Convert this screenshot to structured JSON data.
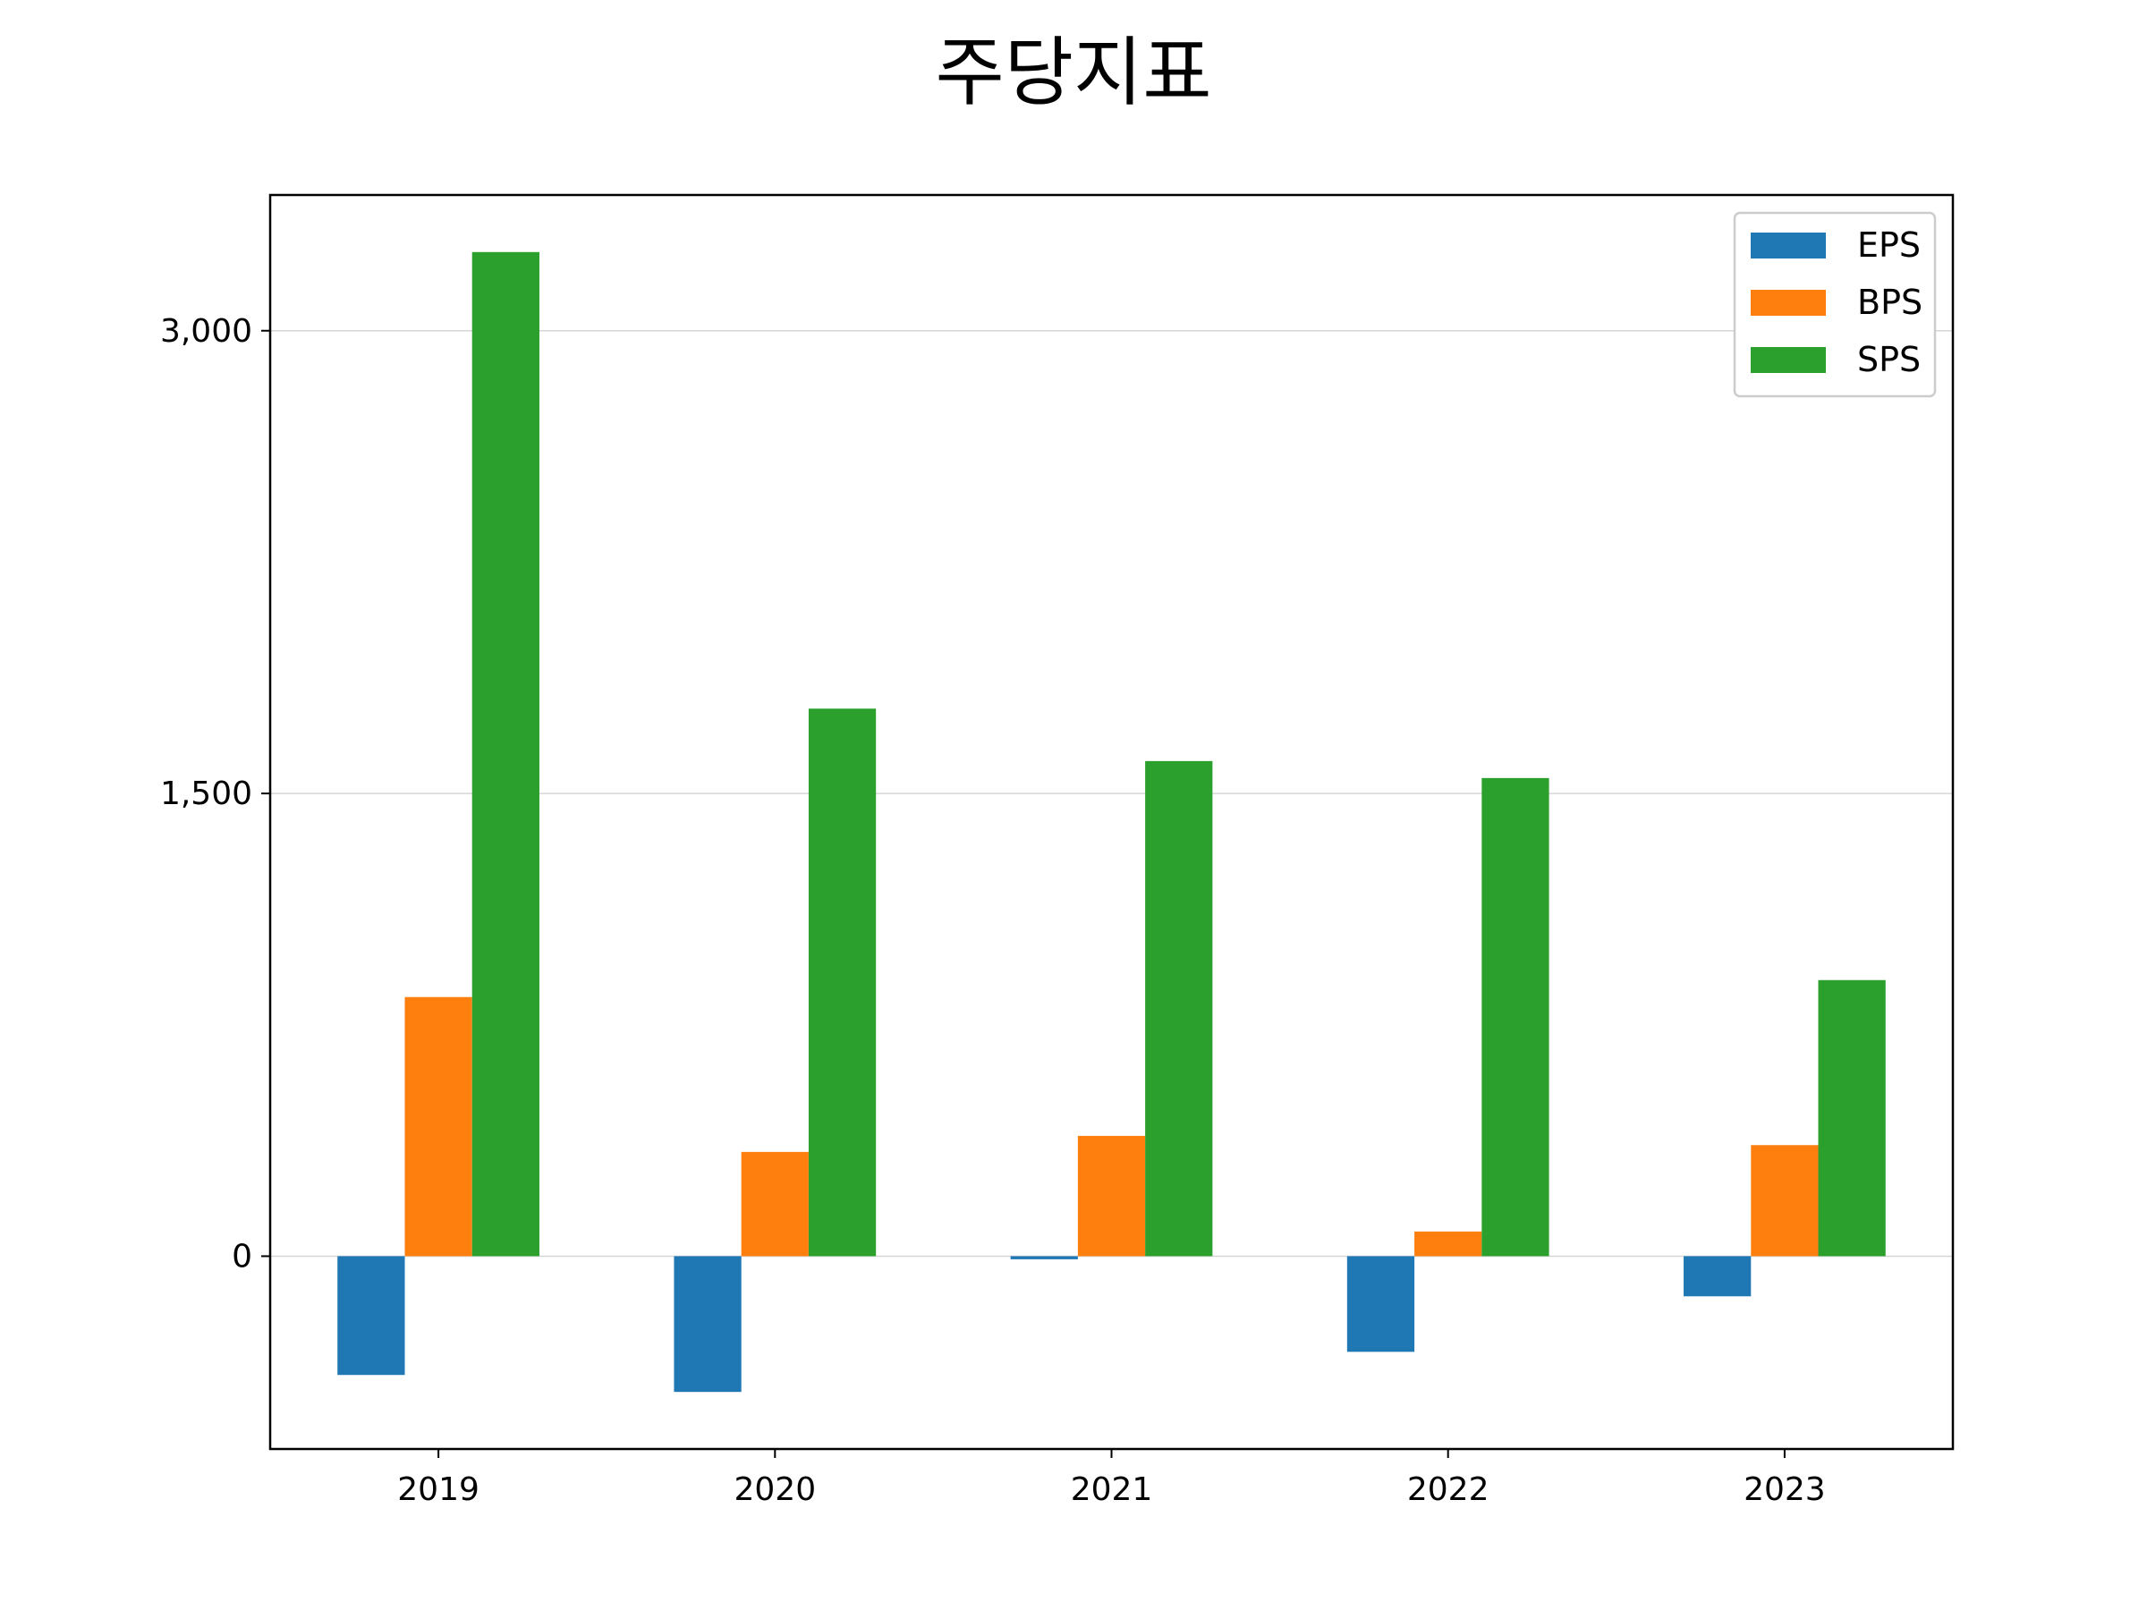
{
  "chart_data": {
    "type": "bar",
    "title": "주당지표",
    "xlabel": "",
    "ylabel": "",
    "categories": [
      "2019",
      "2020",
      "2021",
      "2022",
      "2023"
    ],
    "series": [
      {
        "name": "EPS",
        "color": "#1f77b4",
        "values": [
          -385,
          -440,
          -10,
          -310,
          -130
        ]
      },
      {
        "name": "BPS",
        "color": "#ff7f0e",
        "values": [
          840,
          338,
          390,
          80,
          360
        ]
      },
      {
        "name": "SPS",
        "color": "#2ca02c",
        "values": [
          3255,
          1775,
          1605,
          1550,
          895
        ]
      }
    ],
    "yticks": [
      0,
      1500,
      3000
    ],
    "ytick_labels": [
      "0",
      "1,500",
      "3,000"
    ],
    "ylim": [
      -625,
      3440
    ],
    "grid": "horizontal",
    "legend_position": "top-right"
  }
}
